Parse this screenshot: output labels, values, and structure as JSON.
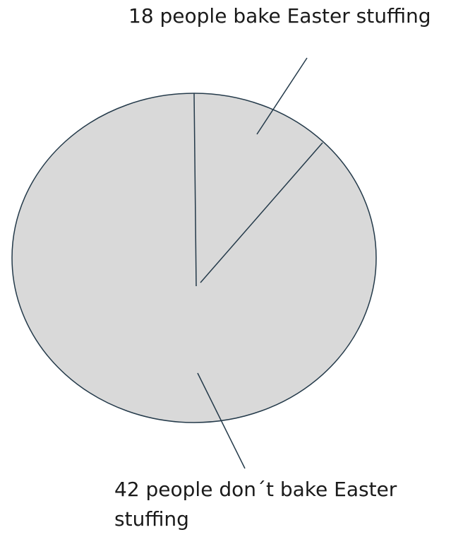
{
  "chart_data": {
    "type": "pie",
    "title": "",
    "categories": [
      "18 people bake Easter stuffing",
      "42 people don´t bake Easter stuffing"
    ],
    "values": [
      18,
      42
    ],
    "labels": {
      "bake": "18 people bake Easter stuffing",
      "dont_bake": "42 people don´t bake Easter stuffing"
    },
    "colors": {
      "fill": "#d9d9d9",
      "stroke": "#243a4a",
      "text": "#1a1a1a"
    },
    "legend": "none"
  }
}
